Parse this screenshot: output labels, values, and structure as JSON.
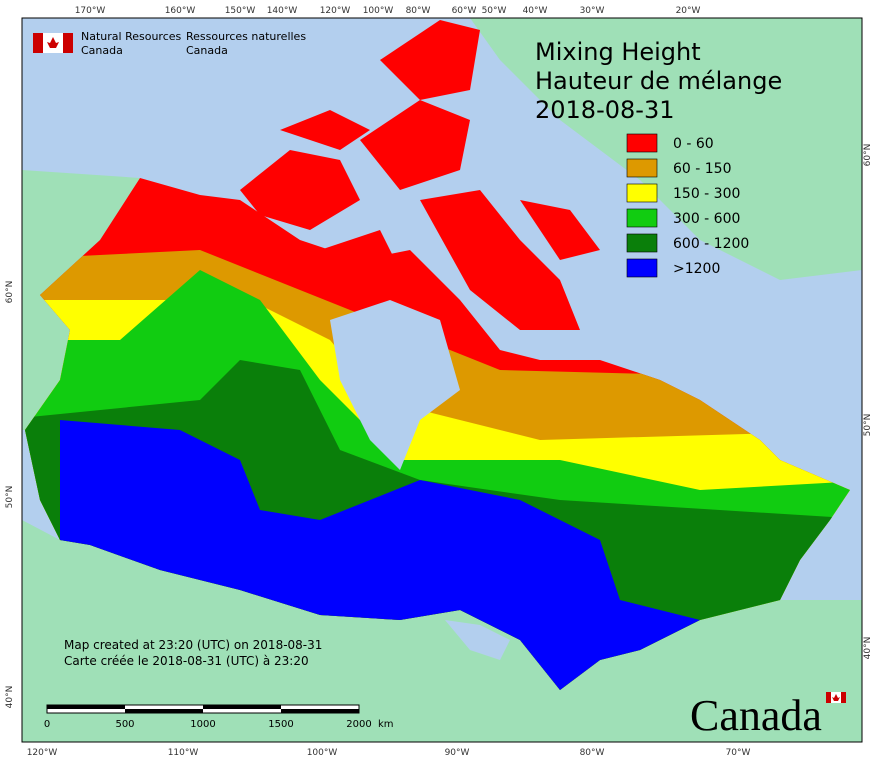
{
  "header": {
    "agency_en": [
      "Natural Resources",
      "Canada"
    ],
    "agency_fr": [
      "Ressources naturelles",
      "Canada"
    ]
  },
  "title": [
    "Mixing Height",
    "Hauteur de mélange",
    "2018-08-31"
  ],
  "legend": [
    {
      "label": "0 - 60",
      "color": "#ff0000"
    },
    {
      "label": "60 - 150",
      "color": "#dd9900"
    },
    {
      "label": "150 - 300",
      "color": "#ffff00"
    },
    {
      "label": "300 - 600",
      "color": "#11cc11"
    },
    {
      "label": "600 - 1200",
      "color": "#0a7f0a"
    },
    {
      "label": ">1200",
      "color": "#0000ff"
    }
  ],
  "graticule": {
    "top": [
      "170°W",
      "160°W",
      "150°W",
      "140°W",
      "120°W",
      "100°W",
      "80°W",
      "60°W",
      "50°W",
      "40°W",
      "30°W",
      "20°W"
    ],
    "bottom": [
      "120°W",
      "110°W",
      "100°W",
      "90°W",
      "80°W",
      "70°W"
    ],
    "left": [
      "60°N",
      "50°N",
      "40°N"
    ],
    "right": [
      "60°N",
      "50°N",
      "40°N"
    ]
  },
  "credits": [
    "Map created at 23:20 (UTC) on 2018-08-31",
    "Carte créée le 2018-08-31 (UTC) à 23:20"
  ],
  "scale_bar": {
    "labels": [
      "0",
      "500",
      "1000",
      "1500",
      "2000"
    ],
    "unit": "km"
  },
  "wordmark": "Canada"
}
